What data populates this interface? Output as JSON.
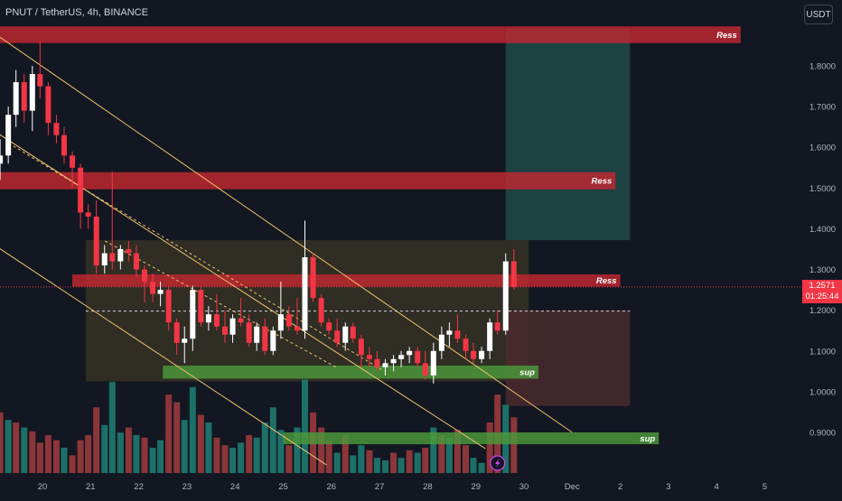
{
  "header": {
    "title": "PNUT / TetherUS, 4h, BINANCE",
    "currency_button": "USDT"
  },
  "price_tag": {
    "price": "1.2571",
    "countdown": "01:25:44",
    "color": "#f23645"
  },
  "colors": {
    "background": "#131722",
    "up": "#ffffff",
    "down": "#f23645",
    "resistance_zone": "#c2272f",
    "support_zone": "#4c9a3a",
    "trend_line": "#f0c36d",
    "volume_up": "#1f7a70",
    "volume_down": "#9a3a3d"
  },
  "chart_data": {
    "type": "candlestick",
    "title": "PNUT / TetherUS, 4h, BINANCE",
    "y_axis_ticks": [
      1.8,
      1.7,
      1.6,
      1.5,
      1.4,
      1.3,
      1.2,
      1.1,
      1.0,
      0.9
    ],
    "y_axis_labels": [
      "1.8000",
      "1.7000",
      "1.6000",
      "1.5000",
      "1.4000",
      "1.3000",
      "1.2000",
      "1.1000",
      "1.0000",
      "0.9000"
    ],
    "y_range": [
      0.86,
      1.92
    ],
    "x_axis_labels": [
      {
        "label": "20",
        "day": 20
      },
      {
        "label": "21",
        "day": 21
      },
      {
        "label": "22",
        "day": 22
      },
      {
        "label": "23",
        "day": 23
      },
      {
        "label": "24",
        "day": 24
      },
      {
        "label": "25",
        "day": 25
      },
      {
        "label": "26",
        "day": 26
      },
      {
        "label": "27",
        "day": 27
      },
      {
        "label": "28",
        "day": 28
      },
      {
        "label": "29",
        "day": 29
      },
      {
        "label": "30",
        "day": 30
      },
      {
        "label": "Dec",
        "day": 31
      },
      {
        "label": "2",
        "day": 32
      },
      {
        "label": "3",
        "day": 33
      },
      {
        "label": "4",
        "day": 34
      },
      {
        "label": "5",
        "day": 35
      }
    ],
    "x_axis_note": "day index counts November days; Dec 1 = 31",
    "last_price": 1.2571,
    "candles": [
      [
        19.12,
        1.56,
        1.62,
        1.52,
        1.58
      ],
      [
        19.29,
        1.58,
        1.7,
        1.56,
        1.68
      ],
      [
        19.45,
        1.68,
        1.79,
        1.65,
        1.76
      ],
      [
        19.62,
        1.76,
        1.78,
        1.66,
        1.69
      ],
      [
        19.79,
        1.69,
        1.8,
        1.64,
        1.78
      ],
      [
        19.95,
        1.78,
        1.86,
        1.72,
        1.75
      ],
      [
        20.12,
        1.75,
        1.76,
        1.63,
        1.66
      ],
      [
        20.29,
        1.66,
        1.68,
        1.61,
        1.63
      ],
      [
        20.45,
        1.63,
        1.65,
        1.56,
        1.58
      ],
      [
        20.62,
        1.58,
        1.59,
        1.5,
        1.55
      ],
      [
        20.79,
        1.55,
        1.56,
        1.4,
        1.44
      ],
      [
        20.95,
        1.44,
        1.46,
        1.4,
        1.43
      ],
      [
        21.12,
        1.43,
        1.47,
        1.29,
        1.31
      ],
      [
        21.29,
        1.31,
        1.36,
        1.29,
        1.34
      ],
      [
        21.45,
        1.34,
        1.54,
        1.3,
        1.32
      ],
      [
        21.62,
        1.32,
        1.36,
        1.3,
        1.35
      ],
      [
        21.79,
        1.35,
        1.37,
        1.32,
        1.34
      ],
      [
        21.95,
        1.34,
        1.36,
        1.28,
        1.3
      ],
      [
        22.12,
        1.3,
        1.31,
        1.22,
        1.27
      ],
      [
        22.29,
        1.27,
        1.29,
        1.22,
        1.24
      ],
      [
        22.45,
        1.24,
        1.27,
        1.21,
        1.25
      ],
      [
        22.62,
        1.25,
        1.26,
        1.15,
        1.17
      ],
      [
        22.79,
        1.17,
        1.18,
        1.09,
        1.12
      ],
      [
        22.95,
        1.12,
        1.16,
        1.07,
        1.13
      ],
      [
        23.12,
        1.13,
        1.26,
        1.1,
        1.25
      ],
      [
        23.29,
        1.25,
        1.26,
        1.16,
        1.17
      ],
      [
        23.45,
        1.17,
        1.21,
        1.15,
        1.19
      ],
      [
        23.62,
        1.19,
        1.24,
        1.15,
        1.16
      ],
      [
        23.79,
        1.16,
        1.2,
        1.12,
        1.14
      ],
      [
        23.95,
        1.14,
        1.19,
        1.12,
        1.18
      ],
      [
        24.12,
        1.18,
        1.23,
        1.16,
        1.17
      ],
      [
        24.29,
        1.17,
        1.19,
        1.11,
        1.12
      ],
      [
        24.45,
        1.12,
        1.17,
        1.1,
        1.16
      ],
      [
        24.62,
        1.16,
        1.18,
        1.09,
        1.1
      ],
      [
        24.79,
        1.1,
        1.16,
        1.09,
        1.15
      ],
      [
        24.95,
        1.15,
        1.27,
        1.13,
        1.19
      ],
      [
        25.12,
        1.19,
        1.21,
        1.15,
        1.16
      ],
      [
        25.29,
        1.16,
        1.23,
        1.14,
        1.15
      ],
      [
        25.45,
        1.15,
        1.42,
        1.13,
        1.33
      ],
      [
        25.62,
        1.33,
        1.34,
        1.22,
        1.23
      ],
      [
        25.79,
        1.23,
        1.24,
        1.16,
        1.17
      ],
      [
        25.95,
        1.17,
        1.18,
        1.14,
        1.15
      ],
      [
        26.12,
        1.15,
        1.18,
        1.11,
        1.12
      ],
      [
        26.29,
        1.12,
        1.17,
        1.1,
        1.16
      ],
      [
        26.45,
        1.16,
        1.17,
        1.12,
        1.13
      ],
      [
        26.62,
        1.13,
        1.14,
        1.06,
        1.09
      ],
      [
        26.79,
        1.09,
        1.11,
        1.06,
        1.08
      ],
      [
        26.95,
        1.08,
        1.1,
        1.05,
        1.06
      ],
      [
        27.12,
        1.06,
        1.08,
        1.04,
        1.07
      ],
      [
        27.29,
        1.07,
        1.09,
        1.05,
        1.08
      ],
      [
        27.45,
        1.08,
        1.1,
        1.06,
        1.09
      ],
      [
        27.62,
        1.09,
        1.11,
        1.07,
        1.1
      ],
      [
        27.79,
        1.1,
        1.11,
        1.06,
        1.07
      ],
      [
        27.95,
        1.07,
        1.1,
        1.03,
        1.04
      ],
      [
        28.12,
        1.04,
        1.12,
        1.02,
        1.1
      ],
      [
        28.29,
        1.1,
        1.16,
        1.08,
        1.14
      ],
      [
        28.45,
        1.14,
        1.17,
        1.11,
        1.15
      ],
      [
        28.62,
        1.15,
        1.19,
        1.12,
        1.13
      ],
      [
        28.79,
        1.13,
        1.14,
        1.08,
        1.1
      ],
      [
        28.95,
        1.1,
        1.12,
        1.07,
        1.08
      ],
      [
        29.12,
        1.08,
        1.11,
        1.07,
        1.1
      ],
      [
        29.29,
        1.1,
        1.18,
        1.08,
        1.17
      ],
      [
        29.45,
        1.17,
        1.2,
        1.14,
        1.15
      ],
      [
        29.62,
        1.15,
        1.34,
        1.14,
        1.32
      ],
      [
        29.79,
        1.32,
        1.35,
        1.25,
        1.2571
      ]
    ],
    "volume_bars": [
      [
        19.12,
        0.48,
        "down"
      ],
      [
        19.29,
        0.42,
        "up"
      ],
      [
        19.45,
        0.4,
        "down"
      ],
      [
        19.62,
        0.36,
        "up"
      ],
      [
        19.79,
        0.33,
        "down"
      ],
      [
        19.95,
        0.24,
        "down"
      ],
      [
        20.12,
        0.3,
        "down"
      ],
      [
        20.29,
        0.26,
        "down"
      ],
      [
        20.45,
        0.2,
        "up"
      ],
      [
        20.62,
        0.14,
        "down"
      ],
      [
        20.79,
        0.26,
        "down"
      ],
      [
        20.95,
        0.3,
        "down"
      ],
      [
        21.12,
        0.52,
        "down"
      ],
      [
        21.29,
        0.38,
        "up"
      ],
      [
        21.45,
        0.72,
        "up"
      ],
      [
        21.62,
        0.32,
        "up"
      ],
      [
        21.79,
        0.36,
        "down"
      ],
      [
        21.95,
        0.3,
        "up"
      ],
      [
        22.12,
        0.28,
        "down"
      ],
      [
        22.29,
        0.2,
        "up"
      ],
      [
        22.45,
        0.26,
        "up"
      ],
      [
        22.62,
        0.62,
        "down"
      ],
      [
        22.79,
        0.56,
        "down"
      ],
      [
        22.95,
        0.42,
        "up"
      ],
      [
        23.12,
        0.68,
        "up"
      ],
      [
        23.29,
        0.46,
        "down"
      ],
      [
        23.45,
        0.4,
        "up"
      ],
      [
        23.62,
        0.28,
        "down"
      ],
      [
        23.79,
        0.22,
        "down"
      ],
      [
        23.95,
        0.2,
        "up"
      ],
      [
        24.12,
        0.24,
        "up"
      ],
      [
        24.29,
        0.3,
        "down"
      ],
      [
        24.45,
        0.28,
        "up"
      ],
      [
        24.62,
        0.4,
        "up"
      ],
      [
        24.79,
        0.52,
        "up"
      ],
      [
        24.95,
        0.34,
        "up"
      ],
      [
        25.12,
        0.22,
        "down"
      ],
      [
        25.29,
        0.36,
        "up"
      ],
      [
        25.45,
        0.74,
        "up"
      ],
      [
        25.62,
        0.48,
        "down"
      ],
      [
        25.79,
        0.36,
        "down"
      ],
      [
        25.95,
        0.26,
        "down"
      ],
      [
        26.12,
        0.16,
        "up"
      ],
      [
        26.29,
        0.3,
        "down"
      ],
      [
        26.45,
        0.14,
        "up"
      ],
      [
        26.62,
        0.22,
        "up"
      ],
      [
        26.79,
        0.18,
        "down"
      ],
      [
        26.95,
        0.12,
        "up"
      ],
      [
        27.12,
        0.1,
        "up"
      ],
      [
        27.29,
        0.16,
        "down"
      ],
      [
        27.45,
        0.12,
        "up"
      ],
      [
        27.62,
        0.18,
        "down"
      ],
      [
        27.79,
        0.16,
        "up"
      ],
      [
        27.95,
        0.2,
        "down"
      ],
      [
        28.12,
        0.36,
        "up"
      ],
      [
        28.29,
        0.3,
        "down"
      ],
      [
        28.45,
        0.28,
        "up"
      ],
      [
        28.62,
        0.34,
        "down"
      ],
      [
        28.79,
        0.22,
        "down"
      ],
      [
        28.95,
        0.12,
        "up"
      ],
      [
        29.12,
        0.08,
        "up"
      ],
      [
        29.29,
        0.4,
        "down"
      ],
      [
        29.45,
        0.62,
        "down"
      ],
      [
        29.62,
        0.54,
        "up"
      ],
      [
        29.79,
        0.44,
        "down"
      ]
    ],
    "zones": [
      {
        "label": "Ress",
        "x1": 19.0,
        "x2": 34.5,
        "y1": 1.856,
        "y2": 1.897,
        "kind": "resistance"
      },
      {
        "label": "Ress",
        "x1": 19.0,
        "x2": 31.9,
        "y1": 1.497,
        "y2": 1.539,
        "kind": "resistance"
      },
      {
        "label": "Ress",
        "x1": 20.62,
        "x2": 32.0,
        "y1": 1.258,
        "y2": 1.288,
        "kind": "resistance"
      },
      {
        "label": "sup",
        "x1": 22.5,
        "x2": 30.3,
        "y1": 1.032,
        "y2": 1.064,
        "kind": "support"
      },
      {
        "label": "sup",
        "x1": 25.0,
        "x2": 32.8,
        "y1": 0.871,
        "y2": 0.9,
        "kind": "support"
      }
    ],
    "rect_zones": [
      {
        "x1": 20.9,
        "x2": 30.1,
        "y1": 1.025,
        "y2": 1.372,
        "kind": "range"
      },
      {
        "x1": 29.62,
        "x2": 32.2,
        "y1": 1.372,
        "y2": 1.89,
        "kind": "target"
      },
      {
        "x1": 29.62,
        "x2": 32.2,
        "y1": 0.965,
        "y2": 1.2,
        "kind": "stop"
      }
    ],
    "trend_lines": [
      {
        "x1": 19.0,
        "y1": 1.88,
        "x2": 31.0,
        "y2": 0.9,
        "style": "solid"
      },
      {
        "x1": 19.0,
        "y1": 1.36,
        "x2": 25.9,
        "y2": 0.82,
        "style": "solid"
      },
      {
        "x1": 19.0,
        "y1": 1.64,
        "x2": 29.2,
        "y2": 0.86,
        "style": "solid"
      },
      {
        "x1": 19.3,
        "y1": 1.61,
        "x2": 27.1,
        "y2": 1.05,
        "style": "dashed"
      },
      {
        "x1": 21.3,
        "y1": 1.37,
        "x2": 26.1,
        "y2": 1.06,
        "style": "dashed"
      },
      {
        "x1": 20.9,
        "y1": 1.198,
        "x2": 32.2,
        "y2": 1.198,
        "style": "dashed"
      }
    ]
  }
}
